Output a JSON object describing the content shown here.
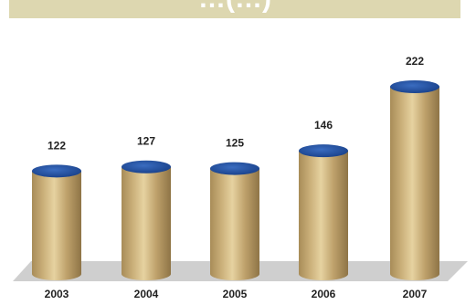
{
  "chart_data": {
    "type": "bar",
    "title": "…(…)",
    "categories": [
      "2003",
      "2004",
      "2005",
      "2006",
      "2007"
    ],
    "values": [
      122,
      127,
      125,
      146,
      222
    ],
    "ylim": [
      0,
      222
    ],
    "grid": false,
    "legend": "none",
    "colors": {
      "bar_body": "#c0a46e",
      "bar_highlight": "#e3cd98",
      "bar_shadow": "#8e7446",
      "bar_cap": "#1f4fa0",
      "floor": "#cfcfcf",
      "title_band": "#ddd7b0"
    }
  }
}
